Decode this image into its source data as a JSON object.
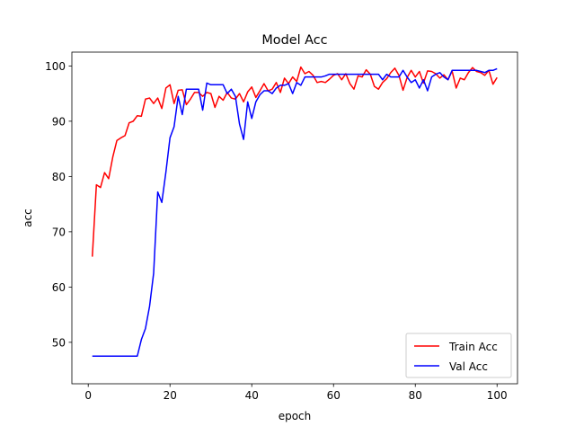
{
  "chart_data": {
    "type": "line",
    "title": "Model Acc",
    "xlabel": "epoch",
    "ylabel": "acc",
    "xlim": [
      -4,
      105
    ],
    "ylim": [
      42.5,
      102.5
    ],
    "xticks": [
      0,
      20,
      40,
      60,
      80,
      100
    ],
    "yticks": [
      50,
      60,
      70,
      80,
      90,
      100
    ],
    "grid": false,
    "legend_position": "lower-right",
    "series": [
      {
        "name": "Train Acc",
        "color": "#ff0000",
        "x": [
          1,
          2,
          3,
          4,
          5,
          6,
          7,
          8,
          9,
          10,
          11,
          12,
          13,
          14,
          15,
          16,
          17,
          18,
          19,
          20,
          21,
          22,
          23,
          24,
          25,
          26,
          27,
          28,
          29,
          30,
          31,
          32,
          33,
          34,
          35,
          36,
          37,
          38,
          39,
          40,
          41,
          42,
          43,
          44,
          45,
          46,
          47,
          48,
          49,
          50,
          51,
          52,
          53,
          54,
          55,
          56,
          57,
          58,
          59,
          60,
          61,
          62,
          63,
          64,
          65,
          66,
          67,
          68,
          69,
          70,
          71,
          72,
          73,
          74,
          75,
          76,
          77,
          78,
          79,
          80,
          81,
          82,
          83,
          84,
          85,
          86,
          87,
          88,
          89,
          90,
          91,
          92,
          93,
          94,
          95,
          96,
          97,
          98,
          99,
          100
        ],
        "values": [
          65.5,
          78.5,
          78.0,
          80.7,
          79.6,
          83.5,
          86.5,
          87.0,
          87.4,
          89.7,
          90.0,
          91.0,
          90.9,
          94.0,
          94.2,
          93.2,
          94.2,
          92.3,
          96.0,
          96.6,
          93.2,
          95.6,
          95.7,
          93.0,
          94.0,
          95.2,
          95.2,
          94.5,
          95.2,
          95.0,
          92.5,
          94.5,
          93.8,
          95.2,
          94.2,
          94.0,
          95.0,
          93.5,
          95.3,
          96.2,
          94.3,
          95.5,
          96.8,
          95.5,
          95.8,
          97.0,
          95.2,
          97.8,
          96.8,
          98.0,
          97.2,
          99.8,
          98.6,
          99.0,
          98.3,
          97.0,
          97.2,
          97.0,
          97.6,
          98.3,
          98.6,
          97.5,
          98.6,
          96.8,
          95.8,
          98.2,
          98.0,
          99.3,
          98.5,
          96.3,
          95.8,
          97.0,
          97.7,
          98.8,
          99.6,
          98.3,
          95.6,
          97.9,
          99.2,
          98.0,
          99.0,
          96.9,
          99.1,
          99.0,
          98.6,
          97.8,
          98.4,
          97.5,
          99.1,
          96.0,
          97.8,
          97.5,
          98.8,
          99.7,
          99.0,
          98.8,
          98.3,
          99.2,
          96.7,
          97.9
        ]
      },
      {
        "name": "Val Acc",
        "color": "#0000ff",
        "x": [
          1,
          2,
          3,
          4,
          5,
          6,
          7,
          8,
          9,
          10,
          11,
          12,
          13,
          14,
          15,
          16,
          17,
          18,
          19,
          20,
          21,
          22,
          23,
          24,
          25,
          26,
          27,
          28,
          29,
          30,
          31,
          32,
          33,
          34,
          35,
          36,
          37,
          38,
          39,
          40,
          41,
          42,
          43,
          44,
          45,
          46,
          47,
          48,
          49,
          50,
          51,
          52,
          53,
          54,
          55,
          56,
          57,
          58,
          59,
          60,
          61,
          62,
          63,
          64,
          65,
          66,
          67,
          68,
          69,
          70,
          71,
          72,
          73,
          74,
          75,
          76,
          77,
          78,
          79,
          80,
          81,
          82,
          83,
          84,
          85,
          86,
          87,
          88,
          89,
          90,
          91,
          92,
          93,
          94,
          95,
          96,
          97,
          98,
          99,
          100
        ],
        "values": [
          47.5,
          47.5,
          47.5,
          47.5,
          47.5,
          47.5,
          47.5,
          47.5,
          47.5,
          47.5,
          47.5,
          47.5,
          50.5,
          52.5,
          56.5,
          62.5,
          77.2,
          75.3,
          80.8,
          87.0,
          89.0,
          94.5,
          91.2,
          95.8,
          95.8,
          95.8,
          95.8,
          92.0,
          96.9,
          96.6,
          96.6,
          96.6,
          96.6,
          95.0,
          95.8,
          94.5,
          89.5,
          86.7,
          93.5,
          90.5,
          93.5,
          94.8,
          95.5,
          95.5,
          95.0,
          96.0,
          96.5,
          96.5,
          96.8,
          95.0,
          97.0,
          96.5,
          98.0,
          98.0,
          98.0,
          98.0,
          98.0,
          98.2,
          98.5,
          98.5,
          98.5,
          98.5,
          98.5,
          98.5,
          98.5,
          98.5,
          98.5,
          98.5,
          98.5,
          98.5,
          98.5,
          97.5,
          98.5,
          98.0,
          98.0,
          98.0,
          99.2,
          98.0,
          97.0,
          97.5,
          96.0,
          97.5,
          95.5,
          98.0,
          98.5,
          98.8,
          98.0,
          97.5,
          99.2,
          99.2,
          99.2,
          99.2,
          99.2,
          99.2,
          99.2,
          99.0,
          98.8,
          99.2,
          99.2,
          99.5
        ]
      }
    ]
  }
}
